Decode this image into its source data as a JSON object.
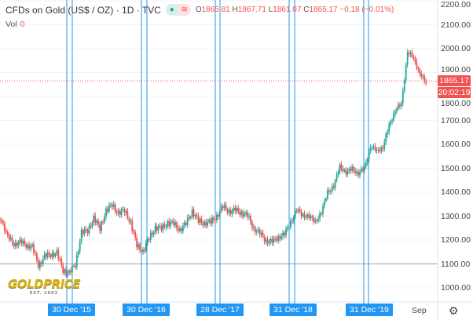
{
  "header": {
    "title": "CFDs on Gold (US$ / OZ) · 1D · TVC",
    "o_label": "O",
    "o": "1865.81",
    "h_label": "H",
    "h": "1867.71",
    "l_label": "L",
    "l": "1861.07",
    "c_label": "C",
    "c": "1865.17",
    "change": "−0.18 (−0.01%)",
    "vol_label": "Vol",
    "vol": "0"
  },
  "logo": {
    "text": "GOLDPRICE",
    "sub": "EST. 2002"
  },
  "last_price": "1865.17",
  "countdown": "20:02:19",
  "colors": {
    "up": "#26a69a",
    "down": "#ef5350",
    "marker": "#2196f3"
  },
  "settings_icon": "gear-icon",
  "chart_data": {
    "type": "candlestick",
    "ylim": [
      950,
      2200
    ],
    "y_ticks": [
      "2200.00",
      "2100.00",
      "2000.00",
      "1900.00",
      "1800.00",
      "1700.00",
      "1600.00",
      "1500.00",
      "1400.00",
      "1300.00",
      "1200.00",
      "1100.00",
      "1000.00"
    ],
    "x_labels": [
      "30 Dec '15",
      "30 Dec '16",
      "28 Dec '17",
      "31 Dec '18",
      "31 Dec '19",
      "Sep"
    ],
    "horizontal_line": 1100,
    "monthly_close_approx_from_jan_2015": [
      1260,
      1290,
      1210,
      1185,
      1190,
      1180,
      1170,
      1095,
      1130,
      1140,
      1145,
      1075,
      1060,
      1100,
      1230,
      1240,
      1290,
      1250,
      1320,
      1350,
      1310,
      1325,
      1270,
      1180,
      1150,
      1210,
      1250,
      1250,
      1270,
      1270,
      1240,
      1270,
      1320,
      1280,
      1270,
      1275,
      1300,
      1340,
      1320,
      1325,
      1315,
      1300,
      1250,
      1225,
      1200,
      1190,
      1215,
      1220,
      1280,
      1320,
      1310,
      1290,
      1285,
      1305,
      1410,
      1415,
      1520,
      1470,
      1510,
      1465,
      1515,
      1580,
      1585,
      1575,
      1690,
      1730,
      1780,
      1975,
      1970,
      1885,
      1865
    ]
  }
}
